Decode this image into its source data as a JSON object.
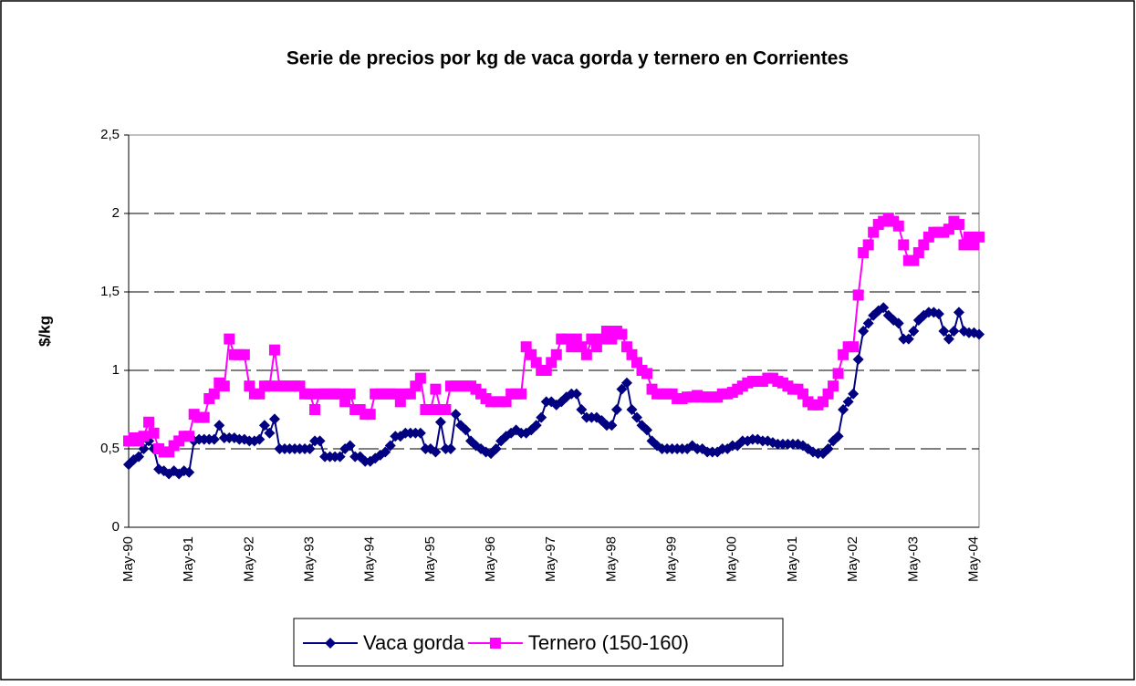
{
  "chart_data": {
    "type": "line",
    "title": "Serie de precios por kg de vaca gorda y ternero en Corrientes",
    "y_label": "$/kg",
    "categories": [
      "May-90",
      null,
      null,
      null,
      null,
      null,
      null,
      null,
      null,
      null,
      null,
      null,
      "May-91",
      null,
      null,
      null,
      null,
      null,
      null,
      null,
      null,
      null,
      null,
      null,
      "May-92",
      null,
      null,
      null,
      null,
      null,
      null,
      null,
      null,
      null,
      null,
      null,
      "May-93",
      null,
      null,
      null,
      null,
      null,
      null,
      null,
      null,
      null,
      null,
      null,
      "May-94",
      null,
      null,
      null,
      null,
      null,
      null,
      null,
      null,
      null,
      null,
      null,
      "May-95",
      null,
      null,
      null,
      null,
      null,
      null,
      null,
      null,
      null,
      null,
      null,
      "May-96",
      null,
      null,
      null,
      null,
      null,
      null,
      null,
      null,
      null,
      null,
      null,
      "May-97",
      null,
      null,
      null,
      null,
      null,
      null,
      null,
      null,
      null,
      null,
      null,
      "May-98",
      null,
      null,
      null,
      null,
      null,
      null,
      null,
      null,
      null,
      null,
      null,
      "May-99",
      null,
      null,
      null,
      null,
      null,
      null,
      null,
      null,
      null,
      null,
      null,
      "May-00",
      null,
      null,
      null,
      null,
      null,
      null,
      null,
      null,
      null,
      null,
      null,
      "May-01",
      null,
      null,
      null,
      null,
      null,
      null,
      null,
      null,
      null,
      null,
      null,
      "May-02",
      null,
      null,
      null,
      null,
      null,
      null,
      null,
      null,
      null,
      null,
      null,
      "May-03",
      null,
      null,
      null,
      null,
      null,
      null,
      null,
      null,
      null,
      null,
      null,
      "May-04",
      null
    ],
    "series": [
      {
        "name": "Vaca gorda",
        "color": "#000080",
        "marker": "diamond",
        "values": [
          0.4,
          0.43,
          0.45,
          0.5,
          0.55,
          0.5,
          0.37,
          0.36,
          0.34,
          0.36,
          0.34,
          0.36,
          0.35,
          0.55,
          0.56,
          0.56,
          0.56,
          0.56,
          0.65,
          0.57,
          0.57,
          0.57,
          0.56,
          0.56,
          0.55,
          0.55,
          0.56,
          0.65,
          0.6,
          0.69,
          0.5,
          0.5,
          0.5,
          0.5,
          0.5,
          0.5,
          0.5,
          0.55,
          0.55,
          0.45,
          0.45,
          0.45,
          0.45,
          0.5,
          0.52,
          0.45,
          0.45,
          0.42,
          0.42,
          0.44,
          0.46,
          0.48,
          0.52,
          0.58,
          0.58,
          0.6,
          0.6,
          0.6,
          0.6,
          0.5,
          0.5,
          0.48,
          0.67,
          0.5,
          0.5,
          0.72,
          0.65,
          0.62,
          0.55,
          0.52,
          0.5,
          0.48,
          0.47,
          0.5,
          0.55,
          0.58,
          0.6,
          0.62,
          0.6,
          0.6,
          0.62,
          0.65,
          0.7,
          0.8,
          0.8,
          0.78,
          0.8,
          0.83,
          0.85,
          0.85,
          0.75,
          0.7,
          0.7,
          0.7,
          0.68,
          0.65,
          0.65,
          0.75,
          0.88,
          0.92,
          0.75,
          0.7,
          0.65,
          0.62,
          0.55,
          0.52,
          0.5,
          0.5,
          0.5,
          0.5,
          0.5,
          0.5,
          0.52,
          0.5,
          0.5,
          0.48,
          0.48,
          0.48,
          0.5,
          0.5,
          0.52,
          0.52,
          0.55,
          0.55,
          0.56,
          0.56,
          0.55,
          0.55,
          0.54,
          0.53,
          0.53,
          0.53,
          0.53,
          0.53,
          0.52,
          0.5,
          0.48,
          0.47,
          0.47,
          0.5,
          0.55,
          0.58,
          0.75,
          0.8,
          0.85,
          1.07,
          1.25,
          1.3,
          1.35,
          1.38,
          1.4,
          1.35,
          1.32,
          1.3,
          1.2,
          1.2,
          1.25,
          1.32,
          1.35,
          1.37,
          1.37,
          1.36,
          1.25,
          1.2,
          1.25,
          1.37,
          1.25,
          1.24,
          1.24,
          1.23
        ]
      },
      {
        "name": "Ternero (150-160)",
        "color": "#ff00ff",
        "marker": "square",
        "values": [
          0.55,
          0.57,
          0.55,
          0.58,
          0.67,
          0.6,
          0.5,
          0.48,
          0.48,
          0.52,
          0.55,
          0.58,
          0.58,
          0.72,
          0.7,
          0.7,
          0.82,
          0.85,
          0.92,
          0.9,
          1.2,
          1.1,
          1.1,
          1.1,
          0.9,
          0.85,
          0.85,
          0.9,
          0.9,
          1.13,
          0.9,
          0.9,
          0.9,
          0.9,
          0.9,
          0.85,
          0.85,
          0.75,
          0.85,
          0.85,
          0.85,
          0.85,
          0.85,
          0.8,
          0.85,
          0.75,
          0.75,
          0.72,
          0.72,
          0.85,
          0.85,
          0.85,
          0.85,
          0.85,
          0.8,
          0.85,
          0.85,
          0.9,
          0.95,
          0.75,
          0.75,
          0.88,
          0.75,
          0.75,
          0.9,
          0.9,
          0.9,
          0.9,
          0.9,
          0.88,
          0.85,
          0.82,
          0.8,
          0.8,
          0.8,
          0.8,
          0.85,
          0.85,
          0.85,
          1.15,
          1.1,
          1.05,
          1.0,
          1.0,
          1.05,
          1.1,
          1.2,
          1.2,
          1.15,
          1.2,
          1.15,
          1.1,
          1.2,
          1.15,
          1.2,
          1.25,
          1.2,
          1.25,
          1.23,
          1.15,
          1.1,
          1.05,
          1.0,
          0.98,
          0.88,
          0.85,
          0.85,
          0.85,
          0.85,
          0.82,
          0.82,
          0.83,
          0.83,
          0.84,
          0.83,
          0.83,
          0.83,
          0.83,
          0.85,
          0.85,
          0.86,
          0.88,
          0.9,
          0.92,
          0.93,
          0.93,
          0.93,
          0.95,
          0.95,
          0.93,
          0.92,
          0.9,
          0.88,
          0.88,
          0.85,
          0.8,
          0.78,
          0.78,
          0.8,
          0.85,
          0.9,
          0.98,
          1.1,
          1.15,
          1.15,
          1.48,
          1.75,
          1.8,
          1.88,
          1.93,
          1.95,
          1.97,
          1.95,
          1.92,
          1.8,
          1.7,
          1.7,
          1.75,
          1.8,
          1.85,
          1.88,
          1.88,
          1.88,
          1.9,
          1.95,
          1.93,
          1.8,
          1.85,
          1.8,
          1.85
        ]
      }
    ],
    "ylim": [
      0,
      2.5
    ],
    "yticks": [
      0,
      {
        "value": 0.5,
        "label": "0,5"
      },
      1,
      {
        "value": 1.5,
        "label": "1,5"
      },
      2,
      {
        "value": 2.5,
        "label": "2,5"
      }
    ],
    "grid": true,
    "legend": "bottom"
  }
}
